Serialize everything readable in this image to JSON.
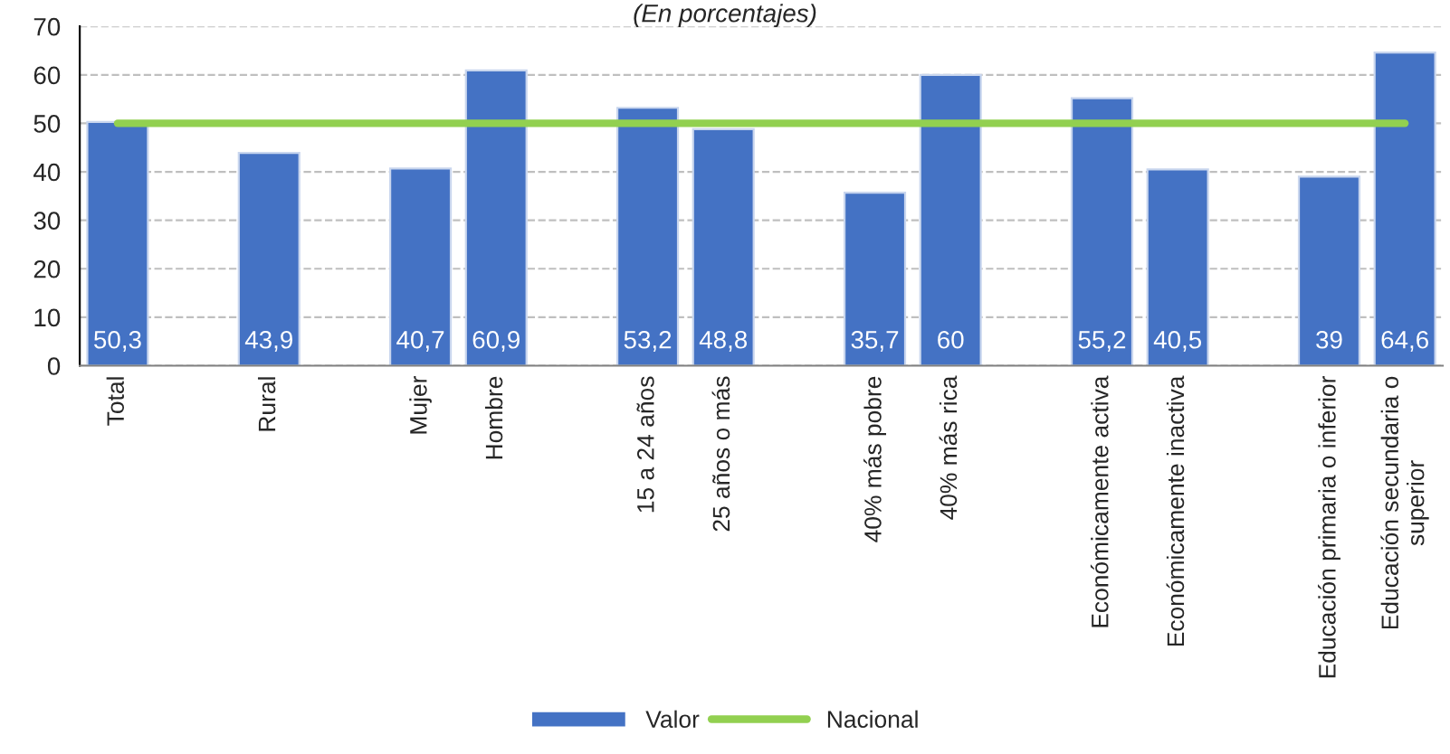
{
  "chart_data": {
    "type": "bar",
    "subtitle": "(En porcentajes)",
    "categories": [
      "Total",
      null,
      "Rural",
      null,
      "Mujer",
      "Hombre",
      null,
      "15 a 24 años",
      "25 años o más",
      null,
      "40% más pobre",
      "40% más rica",
      null,
      "Económicamente activa",
      "Económicamente inactiva",
      null,
      "Educación primaria o inferior",
      "Educación secundaria o\nsuperior"
    ],
    "series": [
      {
        "name": "Valor",
        "color": "#4472c4",
        "values": [
          50.3,
          null,
          43.9,
          null,
          40.7,
          60.9,
          null,
          53.2,
          48.8,
          null,
          35.7,
          60,
          null,
          55.2,
          40.5,
          null,
          39,
          64.6
        ],
        "value_labels": [
          "50,3",
          null,
          "43,9",
          null,
          "40,7",
          "60,9",
          null,
          "53,2",
          "48,8",
          null,
          "35,7",
          "60",
          null,
          "55,2",
          "40,5",
          null,
          "39",
          "64,6"
        ]
      },
      {
        "name": "Nacional",
        "type": "line",
        "color": "#92d050",
        "values": [
          50,
          50,
          50,
          50,
          50,
          50,
          50,
          50,
          50,
          50,
          50,
          50,
          50,
          50,
          50,
          50,
          50,
          50
        ]
      }
    ],
    "ylim": [
      0,
      70
    ],
    "yticks": [
      0,
      10,
      20,
      30,
      40,
      50,
      60,
      70
    ],
    "grid": "y",
    "legend": "bottom"
  }
}
